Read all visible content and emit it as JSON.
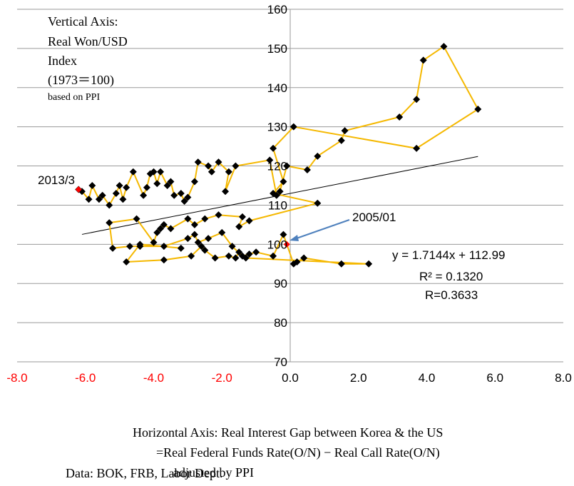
{
  "chart_data": {
    "type": "scatter",
    "title": "",
    "xlim": [
      -8.0,
      8.0
    ],
    "ylim": [
      70,
      160
    ],
    "grid": "horizontal",
    "x_ticks": [
      "-8.0",
      "-6.0",
      "-4.0",
      "-2.0",
      "0.0",
      "2.0",
      "4.0",
      "6.0",
      "8.0"
    ],
    "x_ticks_red_count": 4,
    "y_ticks": [
      "70",
      "80",
      "90",
      "100",
      "110",
      "120",
      "130",
      "140",
      "150",
      "160"
    ],
    "series": [
      {
        "values": [
          [
            -6.2,
            114.0
          ],
          [
            -6.1,
            113.5
          ],
          [
            -5.9,
            111.5
          ],
          [
            -5.8,
            115.0
          ],
          [
            -5.6,
            111.5
          ],
          [
            -5.5,
            112.5
          ],
          [
            -5.3,
            110.0
          ],
          [
            -5.1,
            113.0
          ],
          [
            -5.0,
            115.0
          ],
          [
            -4.9,
            111.5
          ],
          [
            -4.8,
            114.5
          ],
          [
            -4.6,
            118.5
          ],
          [
            -4.3,
            112.5
          ],
          [
            -4.2,
            114.5
          ],
          [
            -4.1,
            118.0
          ],
          [
            -4.0,
            118.5
          ],
          [
            -3.9,
            115.5
          ],
          [
            -3.8,
            118.5
          ],
          [
            -3.6,
            115.0
          ],
          [
            -3.5,
            116.0
          ],
          [
            -3.4,
            112.5
          ],
          [
            -3.2,
            113.0
          ],
          [
            -3.1,
            111.0
          ],
          [
            -3.0,
            112.0
          ],
          [
            -2.8,
            116.0
          ],
          [
            -2.7,
            121.0
          ],
          [
            -2.4,
            120.0
          ],
          [
            -2.3,
            118.5
          ],
          [
            -2.1,
            121.0
          ],
          [
            -1.8,
            118.5
          ],
          [
            -1.9,
            113.5
          ],
          [
            -1.6,
            120.0
          ],
          [
            -0.6,
            121.5
          ],
          [
            -0.4,
            112.5
          ],
          [
            -0.3,
            113.5
          ],
          [
            -0.1,
            120.0
          ],
          [
            0.5,
            119.0
          ],
          [
            0.8,
            122.5
          ],
          [
            1.5,
            126.5
          ],
          [
            1.6,
            129.0
          ],
          [
            3.2,
            132.5
          ],
          [
            3.7,
            137.0
          ],
          [
            3.9,
            147.0
          ],
          [
            4.5,
            150.5
          ],
          [
            5.5,
            134.5
          ],
          [
            3.7,
            124.5
          ],
          [
            0.1,
            130.0
          ],
          [
            -0.5,
            124.5
          ],
          [
            -0.2,
            116.0
          ],
          [
            -0.5,
            113.0
          ],
          [
            0.8,
            110.5
          ],
          [
            -1.2,
            106.0
          ],
          [
            -1.5,
            104.5
          ],
          [
            -1.4,
            107.0
          ],
          [
            -2.1,
            107.5
          ],
          [
            -2.5,
            106.5
          ],
          [
            -2.8,
            105.0
          ],
          [
            -3.0,
            106.5
          ],
          [
            -3.5,
            104.0
          ],
          [
            -3.7,
            105.0
          ],
          [
            -3.8,
            104.0
          ],
          [
            -3.9,
            103.0
          ],
          [
            -4.0,
            100.5
          ],
          [
            -4.5,
            106.5
          ],
          [
            -5.3,
            105.5
          ],
          [
            -5.2,
            99.0
          ],
          [
            -4.7,
            99.5
          ],
          [
            -4.4,
            99.5
          ],
          [
            -3.7,
            99.5
          ],
          [
            -3.0,
            101.5
          ],
          [
            -2.8,
            102.5
          ],
          [
            -2.7,
            100.5
          ],
          [
            -2.4,
            101.5
          ],
          [
            -2.0,
            103.0
          ],
          [
            -1.7,
            99.5
          ],
          [
            -1.4,
            97.0
          ],
          [
            -1.2,
            97.5
          ],
          [
            -1.0,
            98.0
          ],
          [
            -0.5,
            97.0
          ],
          [
            -0.2,
            102.5
          ],
          [
            0.1,
            95.0
          ],
          [
            0.2,
            95.5
          ],
          [
            0.4,
            96.5
          ],
          [
            1.5,
            95.0
          ],
          [
            2.3,
            95.0
          ],
          [
            -1.3,
            96.5
          ],
          [
            -1.5,
            98.0
          ],
          [
            -1.6,
            96.5
          ],
          [
            -1.8,
            97.0
          ],
          [
            -2.2,
            96.5
          ],
          [
            -2.5,
            98.5
          ],
          [
            -2.6,
            99.5
          ],
          [
            -2.9,
            97.0
          ],
          [
            -3.7,
            96.0
          ],
          [
            -4.8,
            95.5
          ],
          [
            -4.4,
            100.0
          ],
          [
            -3.2,
            99.0
          ]
        ]
      }
    ],
    "highlight_points": [
      {
        "label": "2013/3",
        "x": -6.2,
        "y": 114.0
      },
      {
        "label": "2005/01",
        "x": -0.1,
        "y": 100.0
      }
    ],
    "trendline": {
      "slope": 1.7144,
      "intercept": 112.99,
      "x_range": [
        -6.1,
        5.5
      ]
    },
    "annotations": {
      "equation": "y = 1.7144x + 112.99",
      "r_squared": "R² = 0.1320",
      "r_value": "R=0.3633"
    },
    "vertical_axis_note": [
      "Vertical Axis:",
      "Real Won/USD",
      "Index",
      "(1973＝100)",
      "based on PPI"
    ],
    "horizontal_axis_note": [
      "Horizontal Axis: Real Interest Gap between Korea & the US",
      "=Real Federal Funds Rate(O/N) − Real Call Rate(O/N)",
      "adjusted by PPI"
    ],
    "source_note": "Data: BOK, FRB, Labor Dept.",
    "colors": {
      "connector": "#F5B800",
      "marker": "#000000",
      "highlight": "#FF0000",
      "trendline": "#000000",
      "arrow": "#4F81BD",
      "grid": "#9A9A9A",
      "negative_tick": "#FF0000",
      "positive_tick": "#000000"
    }
  }
}
